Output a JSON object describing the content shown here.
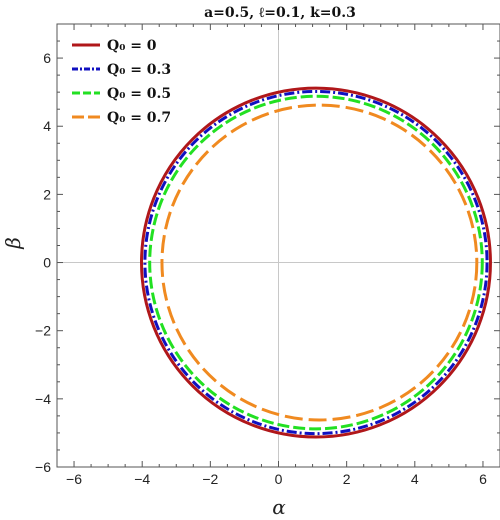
{
  "chart_data": {
    "type": "line",
    "title": "a=0.5, ℓ=0.1, k=0.3",
    "xlabel": "α",
    "ylabel": "β",
    "xlim": [
      -6.5,
      6.5
    ],
    "ylim": [
      -6,
      7
    ],
    "xticks": [
      -6,
      -4,
      -2,
      0,
      2,
      4,
      6
    ],
    "yticks": [
      -6,
      -4,
      -2,
      0,
      2,
      4,
      6
    ],
    "grid": false,
    "legend_position": "top-left",
    "series": [
      {
        "name": "Q₀ = 0",
        "color": "#b0171a",
        "dash": "solid",
        "center_x": 1.1,
        "center_y": 0.0,
        "radius": 5.12
      },
      {
        "name": "Q₀ = 0.3",
        "color": "#1010c0",
        "dash": "dashdot",
        "center_x": 1.1,
        "center_y": 0.0,
        "radius": 5.02
      },
      {
        "name": "Q₀ = 0.5",
        "color": "#22e022",
        "dash": "dashed",
        "center_x": 1.1,
        "center_y": 0.0,
        "radius": 4.88
      },
      {
        "name": "Q₀ = 0.7",
        "color": "#f08a20",
        "dash": "longdash",
        "center_x": 1.2,
        "center_y": 0.0,
        "radius": 4.62
      }
    ]
  }
}
